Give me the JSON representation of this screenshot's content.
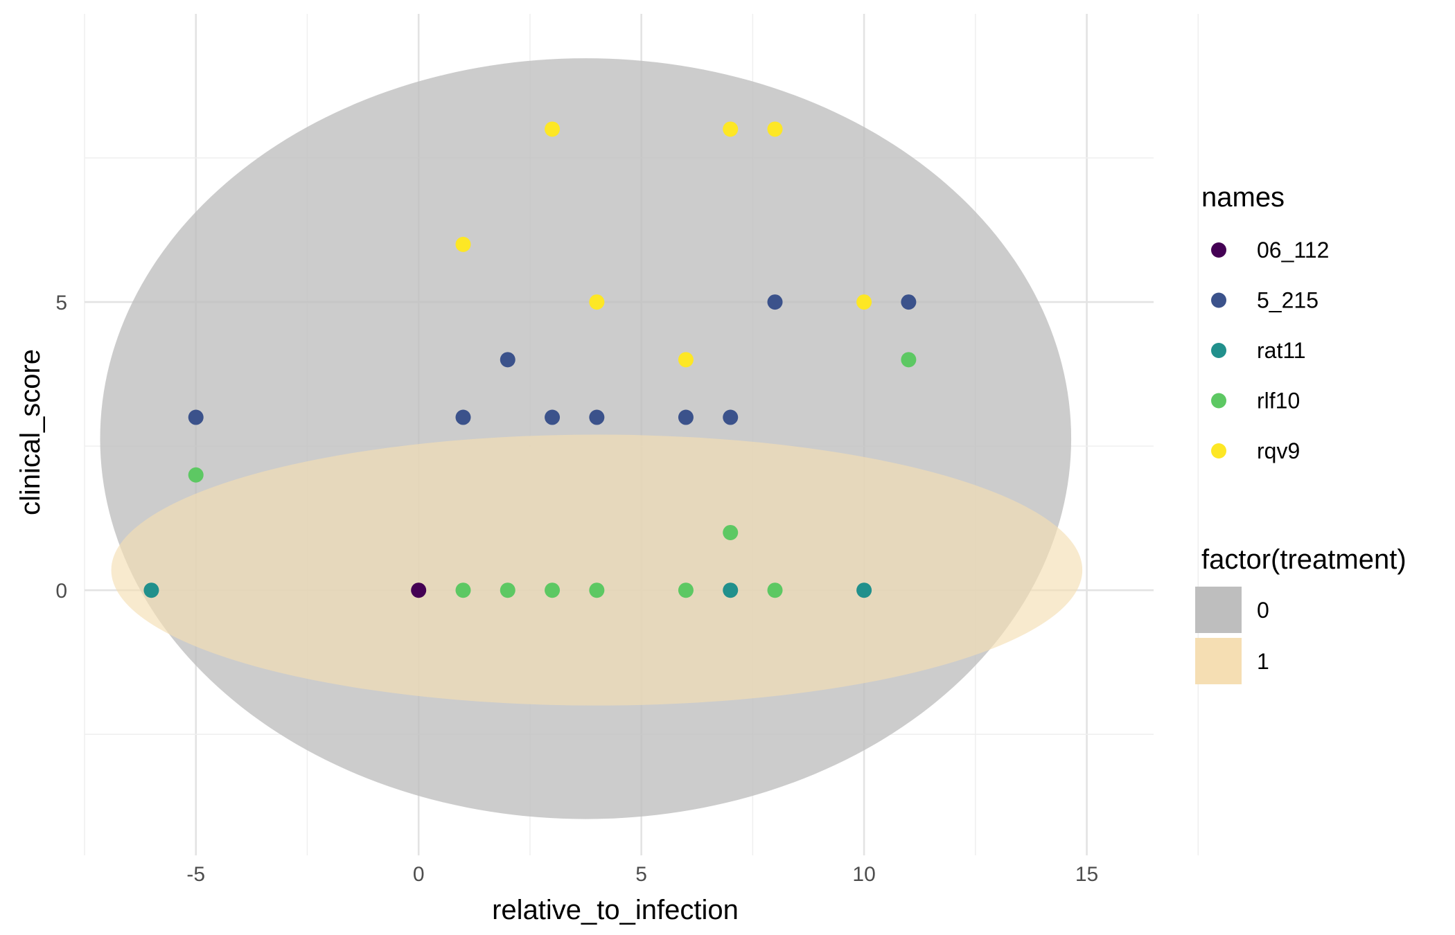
{
  "chart_data": {
    "type": "scatter",
    "xlabel": "relative_to_infection",
    "ylabel": "clinical_score",
    "xlim": [
      -7.5,
      16.5
    ],
    "ylim": [
      -4.6,
      10
    ],
    "x_ticks": [
      -5,
      0,
      5,
      10,
      15
    ],
    "y_ticks": [
      0,
      5
    ],
    "grid": true,
    "legend_position": "right",
    "names_legend": {
      "title": "names",
      "entries": [
        {
          "name": "06_112",
          "color": "#440154"
        },
        {
          "name": "5_215",
          "color": "#3b528b"
        },
        {
          "name": "rat11",
          "color": "#21908c"
        },
        {
          "name": "rlf10",
          "color": "#5dc863"
        },
        {
          "name": "rqv9",
          "color": "#fde725"
        }
      ]
    },
    "treatment_legend": {
      "title": "factor(treatment)",
      "entries": [
        {
          "label": "0",
          "color": "#bebebe"
        },
        {
          "label": "1",
          "color": "#f5deb3"
        }
      ]
    },
    "ellipses": [
      {
        "treatment": "0",
        "center": [
          3.75,
          2.63
        ],
        "rx": 10.9,
        "ry": 6.6,
        "angle_deg": 0,
        "color": "#bebebe",
        "opacity": 0.78
      },
      {
        "treatment": "1",
        "center": [
          4.0,
          0.35
        ],
        "rx": 10.9,
        "ry": 2.35,
        "angle_deg": 0,
        "color": "#f5deb3",
        "opacity": 0.65
      }
    ],
    "series": [
      {
        "name": "06_112",
        "points": [
          [
            0,
            0
          ]
        ]
      },
      {
        "name": "5_215",
        "points": [
          [
            -5,
            3
          ],
          [
            1,
            3
          ],
          [
            2,
            4
          ],
          [
            3,
            3
          ],
          [
            4,
            3
          ],
          [
            6,
            3
          ],
          [
            7,
            3
          ],
          [
            8,
            5
          ],
          [
            11,
            5
          ]
        ]
      },
      {
        "name": "rat11",
        "points": [
          [
            -6,
            0
          ],
          [
            7,
            0
          ],
          [
            10,
            0
          ]
        ]
      },
      {
        "name": "rlf10",
        "points": [
          [
            -5,
            2
          ],
          [
            1,
            0
          ],
          [
            2,
            0
          ],
          [
            3,
            0
          ],
          [
            4,
            0
          ],
          [
            6,
            0
          ],
          [
            7,
            1
          ],
          [
            8,
            0
          ],
          [
            11,
            4
          ]
        ]
      },
      {
        "name": "rqv9",
        "points": [
          [
            1,
            6
          ],
          [
            3,
            8
          ],
          [
            4,
            5
          ],
          [
            6,
            4
          ],
          [
            7,
            8
          ],
          [
            8,
            8
          ],
          [
            10,
            5
          ]
        ]
      }
    ]
  }
}
